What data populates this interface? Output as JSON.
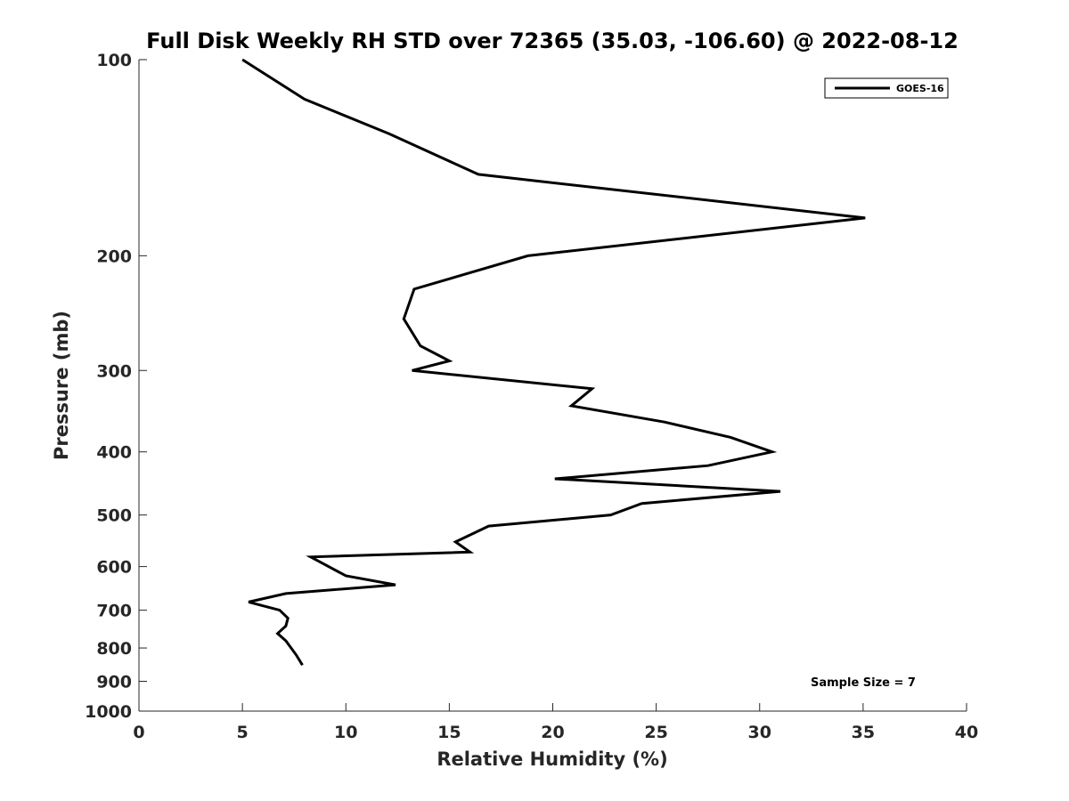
{
  "chart_data": {
    "type": "line",
    "title": "Full Disk Weekly RH STD over 72365 (35.03, -106.60) @ 2022-08-12",
    "xlabel": "Relative Humidity (%)",
    "ylabel": "Pressure (mb)",
    "xlim": [
      0,
      40
    ],
    "ylim": [
      100,
      1000
    ],
    "y_scale": "log",
    "y_reversed": true,
    "x_ticks": [
      0,
      5,
      10,
      15,
      20,
      25,
      30,
      35,
      40
    ],
    "x_tick_labels": [
      "0",
      "5",
      "10",
      "15",
      "20",
      "25",
      "30",
      "35",
      "40"
    ],
    "y_ticks": [
      100,
      200,
      300,
      400,
      500,
      600,
      700,
      800,
      900,
      1000
    ],
    "y_tick_labels": [
      "100",
      "200",
      "300",
      "400",
      "500",
      "600",
      "700",
      "800",
      "900",
      "1000"
    ],
    "grid": false,
    "legend_position": "top-right",
    "series": [
      {
        "name": "GOES-16",
        "color": "#000000",
        "x": [
          5.0,
          8.0,
          12.1,
          16.4,
          35.1,
          18.8,
          13.3,
          12.8,
          13.6,
          15.0,
          13.2,
          21.9,
          20.9,
          25.4,
          28.6,
          30.6,
          27.5,
          20.1,
          31.0,
          24.3,
          22.8,
          16.9,
          15.3,
          16.0,
          8.3,
          10.0,
          12.4,
          7.1,
          5.3,
          6.8,
          7.2,
          7.1,
          6.7,
          7.1,
          7.6,
          7.9
        ],
        "y": [
          100,
          115,
          130,
          150,
          175,
          200,
          225,
          250,
          275,
          290,
          300,
          320,
          340,
          360,
          380,
          400,
          420,
          440,
          460,
          480,
          500,
          520,
          550,
          570,
          580,
          620,
          640,
          660,
          680,
          700,
          720,
          740,
          760,
          780,
          820,
          850
        ]
      }
    ],
    "annotations": [
      {
        "text": "Sample Size = 7"
      }
    ]
  }
}
